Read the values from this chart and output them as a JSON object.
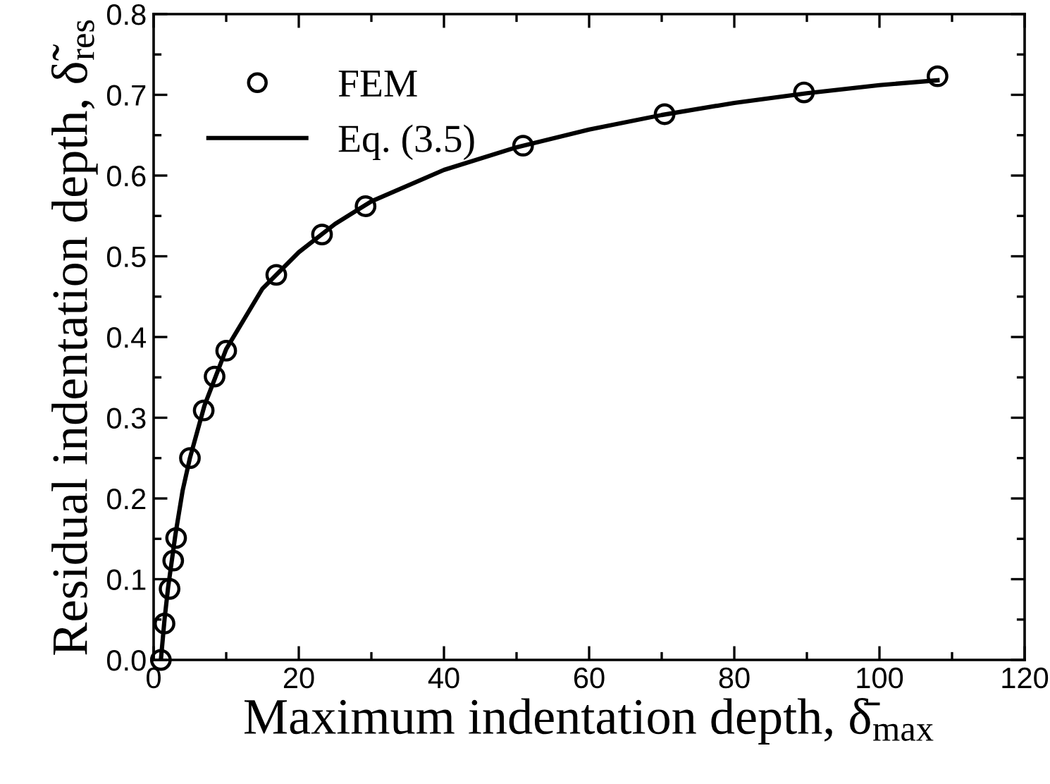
{
  "chart_data": {
    "type": "scatter",
    "xlabel": "Maximum indentation depth, δ̄$_{max}$",
    "ylabel": "Residual indentation depth, δ̃$_{res}$",
    "xlim": [
      0,
      120
    ],
    "xticks": [
      0,
      20,
      40,
      60,
      80,
      100,
      120
    ],
    "ylim": [
      0,
      0.8
    ],
    "yticks": [
      {
        "value": 0,
        "label": "0.0"
      },
      0.1,
      0.2,
      0.3,
      0.4,
      0.5,
      0.6,
      0.7,
      0.8
    ],
    "legend": "top left",
    "grid": false,
    "series": [
      {
        "name": "FEM",
        "marker": "circle",
        "color": "#000000",
        "x": [
          1.0,
          1.5,
          2.2,
          2.7,
          3.1,
          5.0,
          6.9,
          8.4,
          10.0,
          16.9,
          23.2,
          29.2,
          50.9,
          70.4,
          89.6,
          108.0
        ],
        "values": [
          0.0,
          0.045,
          0.088,
          0.123,
          0.151,
          0.25,
          0.309,
          0.351,
          0.383,
          0.477,
          0.527,
          0.562,
          0.637,
          0.676,
          0.703,
          0.723
        ]
      },
      {
        "name": "Eq. (3.5)",
        "type": "line",
        "line_style": "solid",
        "color": "#000000",
        "x": [
          1.0,
          1.5,
          2.0,
          3.0,
          4.0,
          5.0,
          7.0,
          10.0,
          15.0,
          20.0,
          25.0,
          30.0,
          40.0,
          50.0,
          60.0,
          70.0,
          80.0,
          90.0,
          100.0,
          108.0
        ],
        "values": [
          0.0,
          0.05,
          0.09,
          0.155,
          0.21,
          0.25,
          0.315,
          0.385,
          0.46,
          0.505,
          0.54,
          0.568,
          0.607,
          0.635,
          0.657,
          0.675,
          0.69,
          0.702,
          0.712,
          0.718
        ]
      }
    ]
  }
}
